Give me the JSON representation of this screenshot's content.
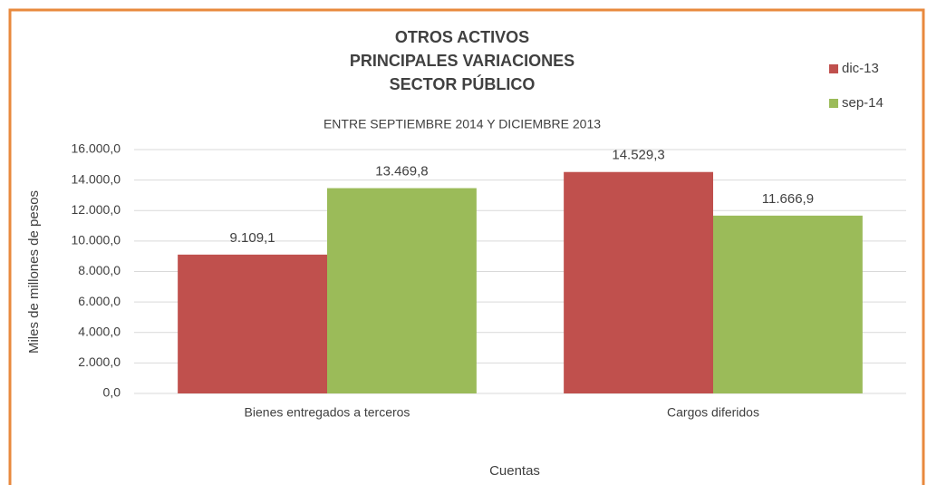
{
  "chart_data": {
    "type": "bar",
    "title": [
      "OTROS ACTIVOS",
      "PRINCIPALES VARIACIONES",
      "SECTOR PÚBLICO"
    ],
    "subtitle": "ENTRE SEPTIEMBRE 2014 Y DICIEMBRE 2013",
    "x_label": "Cuentas",
    "y_label": "Miles de millones de pesos",
    "categories": [
      "Bienes entregados a terceros",
      "Cargos diferidos"
    ],
    "series": [
      {
        "name": "dic-13",
        "color": "#c0504d",
        "values": [
          9109.1,
          14529.3
        ],
        "value_labels": [
          "9.109,1",
          "14.529,3"
        ]
      },
      {
        "name": "sep-14",
        "color": "#9bbb59",
        "values": [
          13469.8,
          11666.9
        ],
        "value_labels": [
          "13.469,8",
          "11.666,9"
        ]
      }
    ],
    "ylim": [
      0,
      16000
    ],
    "yticks": [
      {
        "value": 0,
        "label": "0,0"
      },
      {
        "value": 2000,
        "label": "2.000,0"
      },
      {
        "value": 4000,
        "label": "4.000,0"
      },
      {
        "value": 6000,
        "label": "6.000,0"
      },
      {
        "value": 8000,
        "label": "8.000,0"
      },
      {
        "value": 10000,
        "label": "10.000,0"
      },
      {
        "value": 12000,
        "label": "12.000,0"
      },
      {
        "value": 14000,
        "label": "14.000,0"
      },
      {
        "value": 16000,
        "label": "16.000,0"
      }
    ],
    "grid": true,
    "legend": "top-right"
  }
}
